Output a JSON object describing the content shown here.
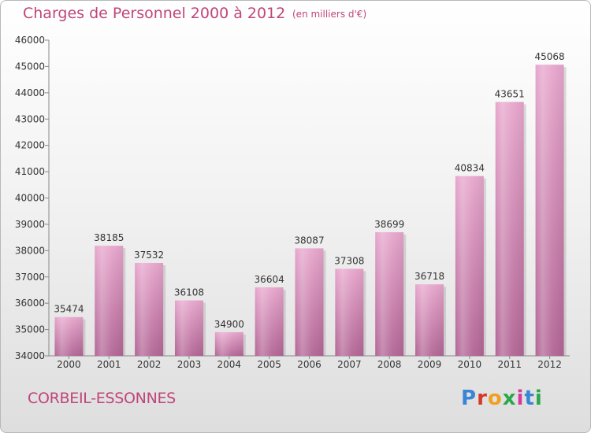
{
  "header": {
    "title": "Charges de Personnel 2000 à 2012",
    "subtitle": "(en milliers d'€)"
  },
  "footer": {
    "commune": "CORBEIL-ESSONNES",
    "logo_text": "Proxiti",
    "logo_colors": [
      "#3a86d6",
      "#d43a2a",
      "#f0a020",
      "#2aa84a",
      "#d43a9a",
      "#3a86d6",
      "#2aa84a"
    ]
  },
  "chart_data": {
    "type": "bar",
    "title": "Charges de Personnel 2000 à 2012",
    "subtitle": "(en milliers d'€)",
    "categories": [
      "2000",
      "2001",
      "2002",
      "2003",
      "2004",
      "2005",
      "2006",
      "2007",
      "2008",
      "2009",
      "2010",
      "2011",
      "2012"
    ],
    "values": [
      35474,
      38185,
      37532,
      36108,
      34900,
      36604,
      38087,
      37308,
      38699,
      36718,
      40834,
      43651,
      45068
    ],
    "ylim": [
      34000,
      46000
    ],
    "yticks": [
      34000,
      35000,
      36000,
      37000,
      38000,
      39000,
      40000,
      41000,
      42000,
      43000,
      44000,
      45000,
      46000
    ],
    "grid": false,
    "bar_color": "#d98ab8",
    "xlabel": "",
    "ylabel": ""
  }
}
